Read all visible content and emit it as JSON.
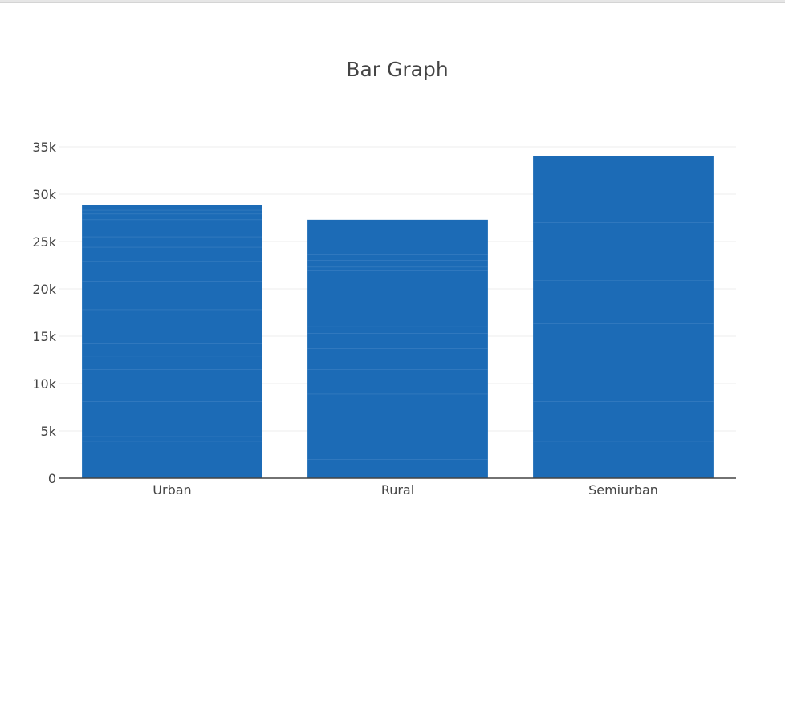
{
  "chart_data": {
    "type": "bar",
    "title": "Bar Graph",
    "xlabel": "",
    "ylabel": "",
    "categories": [
      "Urban",
      "Rural",
      "Semiurban"
    ],
    "values": [
      28850,
      27300,
      34000
    ],
    "ylim": [
      0,
      35000
    ],
    "yticks": [
      0,
      5000,
      10000,
      15000,
      20000,
      25000,
      30000,
      35000
    ],
    "ytick_labels": [
      "0",
      "5k",
      "10k",
      "15k",
      "20k",
      "25k",
      "30k",
      "35k"
    ],
    "grid": true,
    "legend": "none",
    "colors": {
      "bar": "#1c6bb6",
      "segment_line": "#5a93ce",
      "grid": "#eeeeee",
      "axis": "#444444",
      "text": "#444444"
    },
    "stacked_segment_boundaries": [
      [
        28300,
        27900,
        27300,
        25500,
        24400,
        22900,
        20800,
        17800,
        14200,
        12900,
        11500,
        8100,
        4400,
        3900
      ],
      [
        23600,
        23000,
        22300,
        21900,
        16000,
        15300,
        13700,
        11500,
        8900,
        7000,
        4800,
        2000
      ],
      [
        31400,
        27000,
        20900,
        18500,
        16300,
        8100,
        7000,
        3900,
        1400
      ]
    ]
  }
}
